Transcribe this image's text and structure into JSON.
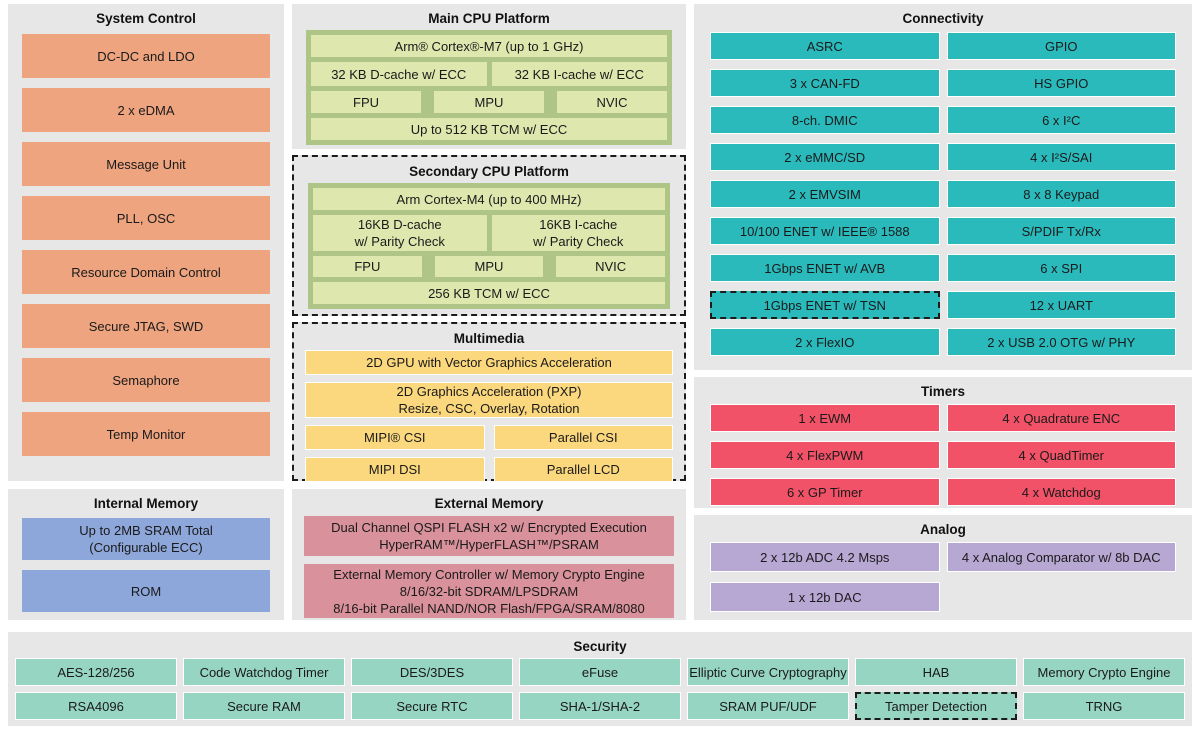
{
  "colors": {
    "panel_bg": "#e7e7e7",
    "system_control": "#eda47f",
    "cpu_container": "#afc487",
    "cpu_block": "#dde7ae",
    "multimedia": "#fbd87e",
    "internal_memory": "#8ea7db",
    "external_memory": "#d9929c",
    "connectivity": "#2bbabc",
    "timers": "#f25267",
    "analog": "#b7a7d3",
    "security": "#97d5c3"
  },
  "diagram": {
    "system_control": {
      "title": "System Control",
      "items": [
        "DC-DC and LDO",
        "2 x eDMA",
        "Message Unit",
        "PLL, OSC",
        "Resource Domain Control",
        "Secure JTAG, SWD",
        "Semaphore",
        "Temp Monitor"
      ]
    },
    "main_cpu": {
      "title": "Main CPU Platform",
      "core": "Arm® Cortex®-M7 (up to 1 GHz)",
      "dcache": "32 KB D-cache w/ ECC",
      "icache": "32 KB I-cache w/ ECC",
      "fpu": "FPU",
      "mpu": "MPU",
      "nvic": "NVIC",
      "tcm": "Up to 512 KB TCM w/ ECC"
    },
    "secondary_cpu": {
      "title": "Secondary CPU Platform",
      "core": "Arm Cortex-M4 (up to 400 MHz)",
      "dcache_line1": "16KB D-cache",
      "dcache_line2": "w/ Parity Check",
      "icache_line1": "16KB I-cache",
      "icache_line2": "w/ Parity Check",
      "fpu": "FPU",
      "mpu": "MPU",
      "nvic": "NVIC",
      "tcm": "256 KB TCM w/ ECC"
    },
    "multimedia": {
      "title": "Multimedia",
      "gpu": "2D GPU with Vector Graphics Acceleration",
      "pxp_line1": "2D Graphics Acceleration (PXP)",
      "pxp_line2": "Resize, CSC, Overlay, Rotation",
      "mipi_csi": "MIPI® CSI",
      "parallel_csi": "Parallel CSI",
      "mipi_dsi": "MIPI DSI",
      "parallel_lcd": "Parallel LCD"
    },
    "internal_memory": {
      "title": "Internal Memory",
      "sram_line1": "Up to 2MB SRAM Total",
      "sram_line2": "(Configurable ECC)",
      "rom": "ROM"
    },
    "external_memory": {
      "title": "External Memory",
      "qspi_line1": "Dual Channel QSPI FLASH x2 w/ Encrypted Execution",
      "qspi_line2": "HyperRAM™/HyperFLASH™/PSRAM",
      "emc_line1": "External Memory Controller w/ Memory Crypto Engine",
      "emc_line2": "8/16/32-bit SDRAM/LPSDRAM",
      "emc_line3": "8/16-bit Parallel NAND/NOR Flash/FPGA/SRAM/8080"
    },
    "connectivity": {
      "title": "Connectivity",
      "left": [
        "ASRC",
        "3 x CAN-FD",
        "8-ch. DMIC",
        "2 x eMMC/SD",
        "2 x EMVSIM",
        "10/100 ENET w/ IEEE® 1588",
        "1Gbps ENET w/ AVB",
        "1Gbps ENET w/ TSN",
        "2 x FlexIO"
      ],
      "right": [
        "GPIO",
        "HS GPIO",
        "6 x I²C",
        "4 x I²S/SAI",
        "8 x 8 Keypad",
        "S/PDIF Tx/Rx",
        "6 x SPI",
        "12 x UART",
        "2 x USB 2.0 OTG w/ PHY"
      ]
    },
    "timers": {
      "title": "Timers",
      "left": [
        "1 x EWM",
        "4 x FlexPWM",
        "6 x GP Timer"
      ],
      "right": [
        "4 x Quadrature ENC",
        "4 x QuadTimer",
        "4 x Watchdog"
      ]
    },
    "analog": {
      "title": "Analog",
      "adc": "2 x 12b ADC 4.2 Msps",
      "comparator": "4 x Analog Comparator w/ 8b DAC",
      "dac": "1 x 12b DAC"
    },
    "security": {
      "title": "Security",
      "row1": [
        "AES-128/256",
        "Code Watchdog Timer",
        "DES/3DES",
        "eFuse",
        "Elliptic Curve Cryptography",
        "HAB",
        "Memory Crypto Engine"
      ],
      "row2": [
        "RSA4096",
        "Secure RAM",
        "Secure RTC",
        "SHA-1/SHA-2",
        "SRAM PUF/UDF",
        "Tamper Detection",
        "TRNG"
      ]
    }
  }
}
